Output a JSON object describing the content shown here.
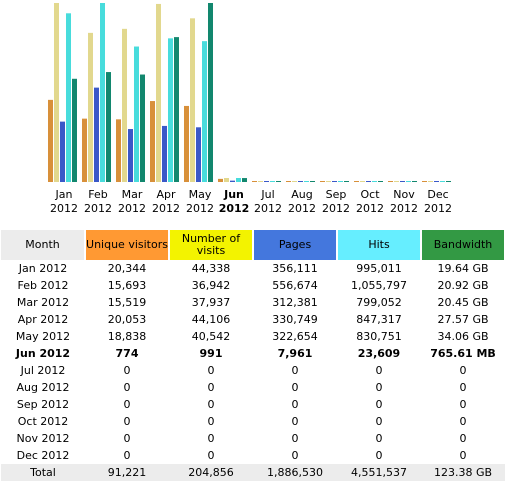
{
  "chart_data": {
    "type": "bar",
    "categories": [
      "Jan",
      "Feb",
      "Mar",
      "Apr",
      "May",
      "Jun",
      "Jul",
      "Aug",
      "Sep",
      "Oct",
      "Nov",
      "Dec"
    ],
    "category_years": [
      "2012",
      "2012",
      "2012",
      "2012",
      "2012",
      "2012",
      "2012",
      "2012",
      "2012",
      "2012",
      "2012",
      "2012"
    ],
    "series": [
      {
        "name": "Unique visitors",
        "color": "#d8903a",
        "values": [
          20344,
          15693,
          15519,
          20053,
          18838,
          774,
          0,
          0,
          0,
          0,
          0,
          0
        ]
      },
      {
        "name": "Number of visits",
        "color": "#e2d88e",
        "values": [
          44338,
          36942,
          37937,
          44106,
          40542,
          991,
          0,
          0,
          0,
          0,
          0,
          0
        ]
      },
      {
        "name": "Pages",
        "color": "#3a58c8",
        "values": [
          356111,
          556674,
          312381,
          330749,
          322654,
          7961,
          0,
          0,
          0,
          0,
          0,
          0
        ]
      },
      {
        "name": "Hits",
        "color": "#48dcdc",
        "values": [
          995011,
          1055797,
          799052,
          847317,
          830751,
          23609,
          0,
          0,
          0,
          0,
          0,
          0
        ]
      },
      {
        "name": "Bandwidth",
        "color": "#12876e",
        "values": [
          19.64,
          20.92,
          20.45,
          27.57,
          34.06,
          0.75,
          0,
          0,
          0,
          0,
          0,
          0
        ]
      }
    ]
  },
  "table": {
    "month_header": "Month",
    "rows": [
      [
        "Jan 2012",
        "20,344",
        "44,338",
        "356,111",
        "995,011",
        "19.64 GB"
      ],
      [
        "Feb 2012",
        "15,693",
        "36,942",
        "556,674",
        "1,055,797",
        "20.92 GB"
      ],
      [
        "Mar 2012",
        "15,519",
        "37,937",
        "312,381",
        "799,052",
        "20.45 GB"
      ],
      [
        "Apr 2012",
        "20,053",
        "44,106",
        "330,749",
        "847,317",
        "27.57 GB"
      ],
      [
        "May 2012",
        "18,838",
        "40,542",
        "322,654",
        "830,751",
        "34.06 GB"
      ],
      [
        "Jun 2012",
        "774",
        "991",
        "7,961",
        "23,609",
        "765.61 MB"
      ],
      [
        "Jul 2012",
        "0",
        "0",
        "0",
        "0",
        "0"
      ],
      [
        "Aug 2012",
        "0",
        "0",
        "0",
        "0",
        "0"
      ],
      [
        "Sep 2012",
        "0",
        "0",
        "0",
        "0",
        "0"
      ],
      [
        "Oct 2012",
        "0",
        "0",
        "0",
        "0",
        "0"
      ],
      [
        "Nov 2012",
        "0",
        "0",
        "0",
        "0",
        "0"
      ],
      [
        "Dec 2012",
        "0",
        "0",
        "0",
        "0",
        "0"
      ]
    ],
    "total": [
      "Total",
      "91,221",
      "204,856",
      "1,886,530",
      "4,551,537",
      "123.38 GB"
    ]
  }
}
